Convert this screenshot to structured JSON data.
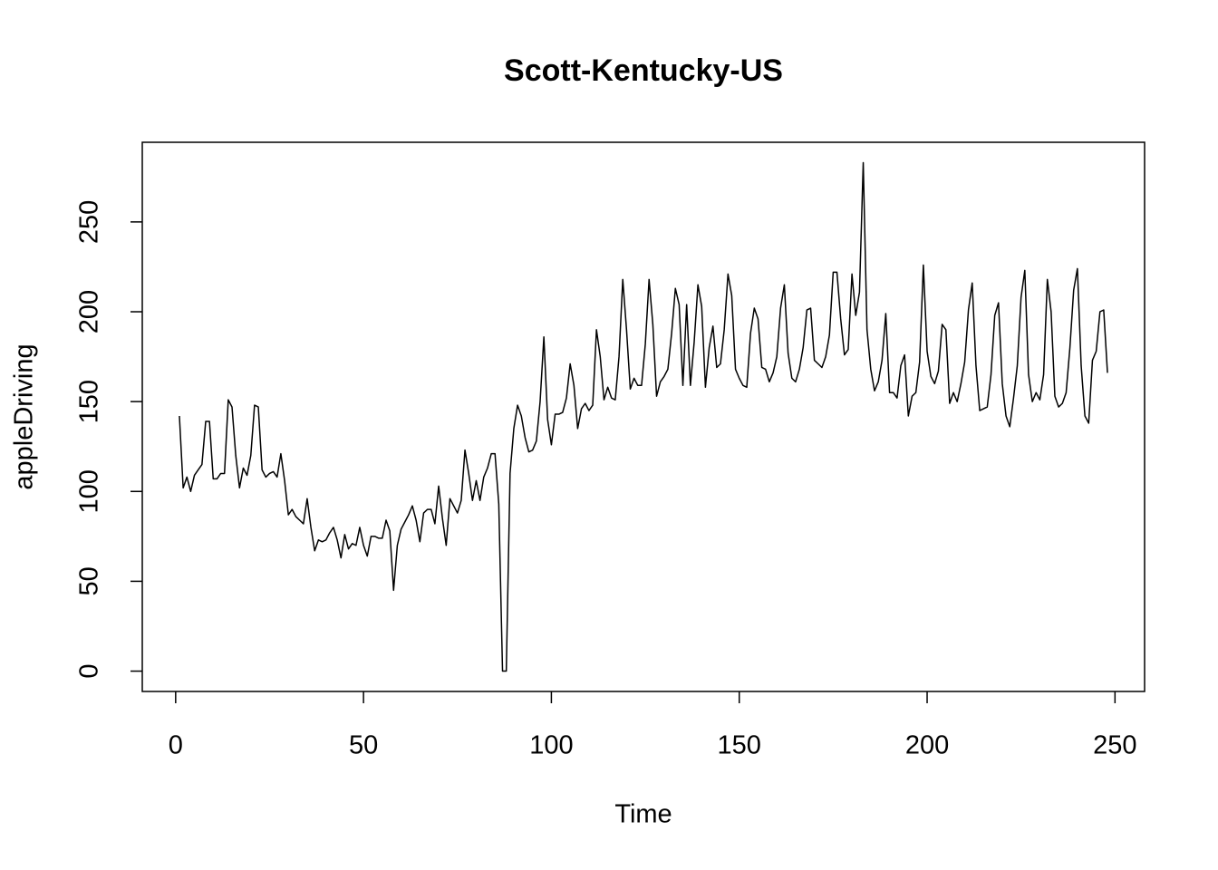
{
  "chart_data": {
    "type": "line",
    "title": "Scott-Kentucky-US",
    "xlabel": "Time",
    "ylabel": "appleDriving",
    "color": "#000000",
    "x": [
      1,
      2,
      3,
      4,
      5,
      6,
      7,
      8,
      9,
      10,
      11,
      12,
      13,
      14,
      15,
      16,
      17,
      18,
      19,
      20,
      21,
      22,
      23,
      24,
      25,
      26,
      27,
      28,
      29,
      30,
      31,
      32,
      33,
      34,
      35,
      36,
      37,
      38,
      39,
      40,
      41,
      42,
      43,
      44,
      45,
      46,
      47,
      48,
      49,
      50,
      51,
      52,
      53,
      54,
      55,
      56,
      57,
      58,
      59,
      60,
      61,
      62,
      63,
      64,
      65,
      66,
      67,
      68,
      69,
      70,
      71,
      72,
      73,
      74,
      75,
      76,
      77,
      78,
      79,
      80,
      81,
      82,
      83,
      84,
      85,
      86,
      87,
      88,
      89,
      90,
      91,
      92,
      93,
      94,
      95,
      96,
      97,
      98,
      99,
      100,
      101,
      102,
      103,
      104,
      105,
      106,
      107,
      108,
      109,
      110,
      111,
      112,
      113,
      114,
      115,
      116,
      117,
      118,
      119,
      120,
      121,
      122,
      123,
      124,
      125,
      126,
      127,
      128,
      129,
      130,
      131,
      132,
      133,
      134,
      135,
      136,
      137,
      138,
      139,
      140,
      141,
      142,
      143,
      144,
      145,
      146,
      147,
      148,
      149,
      150,
      151,
      152,
      153,
      154,
      155,
      156,
      157,
      158,
      159,
      160,
      161,
      162,
      163,
      164,
      165,
      166,
      167,
      168,
      169,
      170,
      171,
      172,
      173,
      174,
      175,
      176,
      177,
      178,
      179,
      180,
      181,
      182,
      183,
      184,
      185,
      186,
      187,
      188,
      189,
      190,
      191,
      192,
      193,
      194,
      195,
      196,
      197,
      198,
      199,
      200,
      201,
      202,
      203,
      204,
      205,
      206,
      207,
      208,
      209,
      210,
      211,
      212,
      213,
      214,
      215,
      216,
      217,
      218,
      219,
      220,
      221,
      222,
      223,
      224,
      225,
      226,
      227,
      228,
      229,
      230,
      231,
      232,
      233,
      234,
      235,
      236,
      237,
      238,
      239,
      240,
      241,
      242,
      243,
      244,
      245,
      246,
      247,
      248
    ],
    "values": [
      142,
      102,
      108,
      100,
      109,
      112,
      115,
      139,
      139,
      107,
      107,
      110,
      110,
      151,
      147,
      120,
      102,
      113,
      109,
      120,
      148,
      147,
      112,
      108,
      110,
      111,
      108,
      121,
      106,
      87,
      90,
      86,
      84,
      82,
      96,
      80,
      67,
      73,
      72,
      73,
      77,
      80,
      73,
      63,
      76,
      68,
      71,
      70,
      80,
      70,
      64,
      75,
      75,
      74,
      74,
      84,
      78,
      45,
      70,
      79,
      83,
      87,
      92,
      84,
      72,
      88,
      90,
      90,
      82,
      103,
      85,
      70,
      96,
      92,
      88,
      95,
      123,
      110,
      95,
      106,
      95,
      108,
      113,
      121,
      121,
      93,
      0,
      0,
      110,
      135,
      148,
      142,
      130,
      122,
      123,
      128,
      150,
      186,
      140,
      126,
      143,
      143,
      144,
      152,
      171,
      159,
      135,
      146,
      149,
      145,
      148,
      190,
      175,
      151,
      158,
      152,
      151,
      175,
      218,
      190,
      157,
      163,
      159,
      159,
      182,
      218,
      193,
      153,
      161,
      164,
      168,
      188,
      213,
      204,
      159,
      204,
      159,
      183,
      215,
      203,
      158,
      180,
      192,
      169,
      171,
      190,
      221,
      209,
      168,
      163,
      159,
      158,
      188,
      202,
      196,
      169,
      168,
      161,
      166,
      175,
      202,
      215,
      177,
      163,
      161,
      168,
      180,
      201,
      202,
      173,
      171,
      169,
      175,
      187,
      222,
      222,
      196,
      176,
      179,
      221,
      198,
      211,
      283,
      190,
      168,
      156,
      161,
      173,
      199,
      155,
      155,
      152,
      170,
      176,
      142,
      153,
      155,
      172,
      226,
      178,
      164,
      160,
      167,
      193,
      190,
      149,
      155,
      150,
      160,
      172,
      201,
      216,
      170,
      145,
      146,
      147,
      165,
      198,
      205,
      160,
      142,
      136,
      152,
      170,
      208,
      223,
      165,
      150,
      155,
      151,
      165,
      218,
      200,
      153,
      147,
      149,
      155,
      180,
      212,
      224,
      170,
      142,
      138,
      173,
      178,
      200,
      201,
      166
    ],
    "xlim": [
      -8.88,
      257.88
    ],
    "ylim": [
      -11.32,
      294.32
    ],
    "xticks": [
      0,
      50,
      100,
      150,
      200,
      250
    ],
    "yticks": [
      0,
      50,
      100,
      150,
      200,
      250
    ]
  }
}
